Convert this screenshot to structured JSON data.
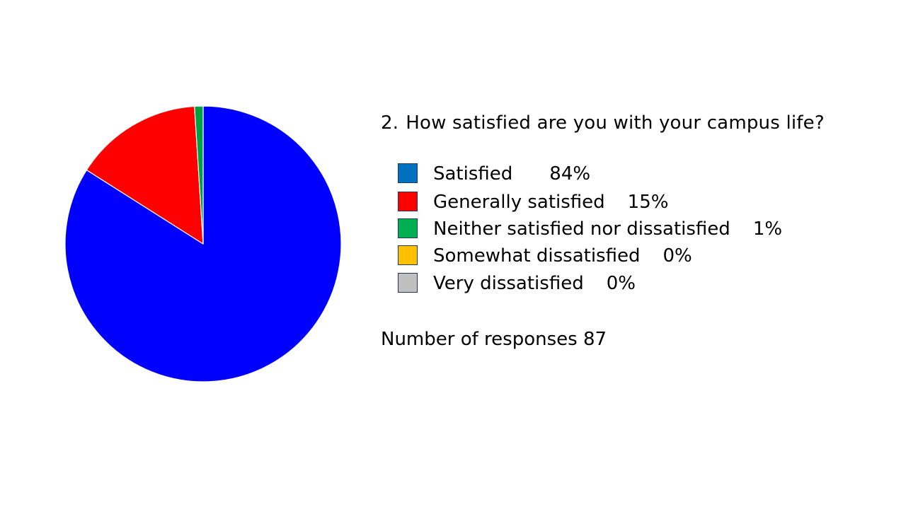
{
  "chart_data": {
    "type": "pie",
    "title": "How satisfied are you with your campus life?",
    "question_number": "2.",
    "unit": "%",
    "slices": [
      {
        "label": "Satisfied",
        "value": 84,
        "display": "84%",
        "color": "#0000FF",
        "legend_color": "#0070C0"
      },
      {
        "label": "Generally satisfied",
        "value": 15,
        "display": "15%",
        "color": "#FF0000",
        "legend_color": "#FF0000"
      },
      {
        "label": "Neither satisfied nor dissatisfied",
        "value": 1,
        "display": "1%",
        "color": "#00A040",
        "legend_color": "#00B050"
      },
      {
        "label": "Somewhat dissatisfied",
        "value": 0,
        "display": "0%",
        "color": "#FFC000",
        "legend_color": "#FFC000"
      },
      {
        "label": "Very dissatisfied",
        "value": 0,
        "display": "0%",
        "color": "#BFBFBF",
        "legend_color": "#BFBFBF"
      }
    ],
    "responses_label": "Number of responses",
    "responses": 87
  }
}
